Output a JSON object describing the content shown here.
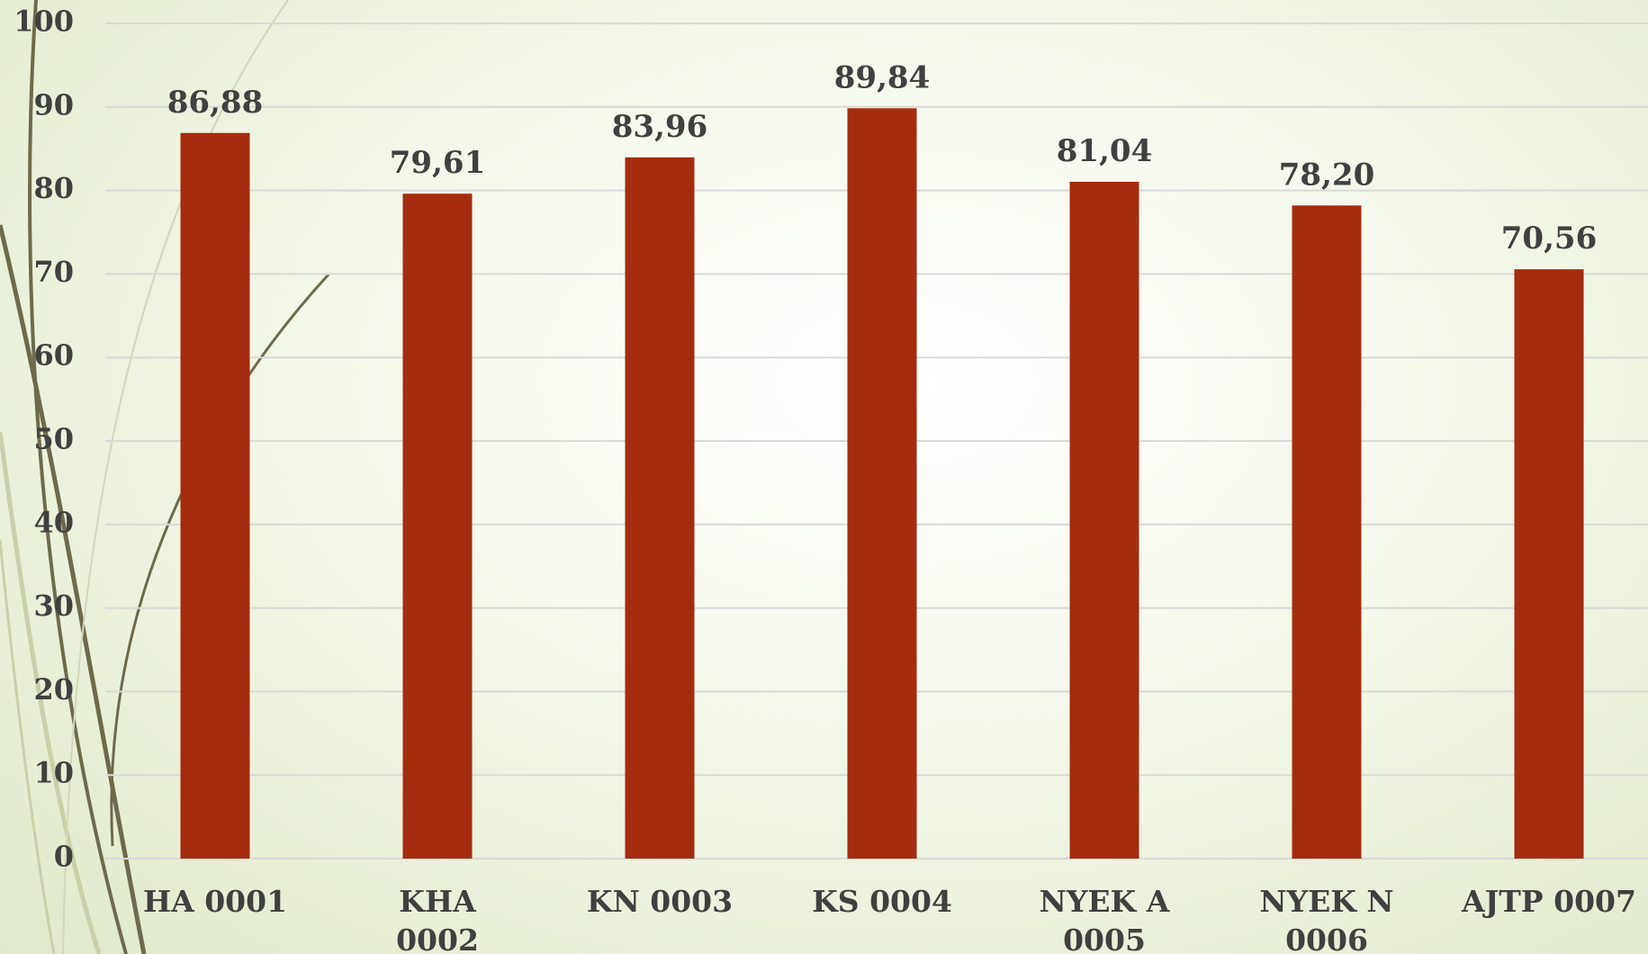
{
  "chart_data": {
    "type": "bar",
    "categories": [
      "HA 0001",
      "KHA 0002",
      "KN 0003",
      "KS 0004",
      "NYEK A 0005",
      "NYEK N 0006",
      "AJTP 0007"
    ],
    "values": [
      86.88,
      79.61,
      83.96,
      89.84,
      81.04,
      78.2,
      70.56
    ],
    "value_labels": [
      "86,88",
      "79,61",
      "83,96",
      "89,84",
      "81,04",
      "78,20",
      "70,56"
    ],
    "color": "#a52c0e",
    "ylim": [
      0,
      100
    ],
    "yticks": [
      0,
      10,
      20,
      30,
      40,
      50,
      60,
      70,
      80,
      90,
      100
    ],
    "grid": true
  }
}
